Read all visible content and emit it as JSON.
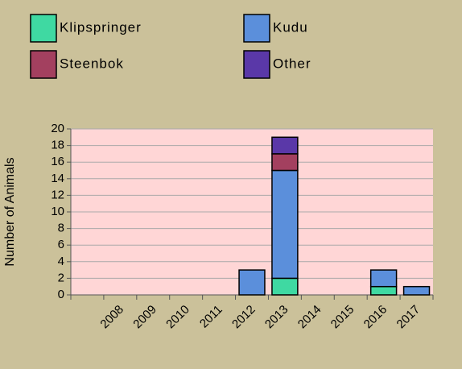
{
  "chart_data": {
    "type": "bar",
    "stacked": true,
    "y_label": "Number of Animals",
    "categories": [
      null,
      "2008",
      "2009",
      "2010",
      "2011",
      "2012",
      "2013",
      "2014",
      "2015",
      "2016",
      "2017"
    ],
    "series": [
      {
        "name": "Klipspringer",
        "color": "#3fd9a2",
        "values": [
          null,
          0,
          0,
          0,
          0,
          0,
          2,
          0,
          0,
          1,
          0
        ]
      },
      {
        "name": "Kudu",
        "color": "#5b8fdb",
        "values": [
          null,
          0,
          0,
          0,
          0,
          3,
          13,
          0,
          0,
          2,
          1
        ]
      },
      {
        "name": "Steenbok",
        "color": "#a3405f",
        "values": [
          null,
          0,
          0,
          0,
          0,
          0,
          2,
          0,
          0,
          0,
          0
        ]
      },
      {
        "name": "Other",
        "color": "#5a38a8",
        "values": [
          null,
          0,
          0,
          0,
          0,
          0,
          2,
          0,
          0,
          0,
          0
        ]
      }
    ],
    "ylim": [
      0,
      20
    ],
    "yticks": [
      0,
      2,
      4,
      6,
      8,
      10,
      12,
      14,
      16,
      18,
      20
    ],
    "grid": true,
    "legend": "top",
    "plot_background": "#ffd6d6"
  }
}
